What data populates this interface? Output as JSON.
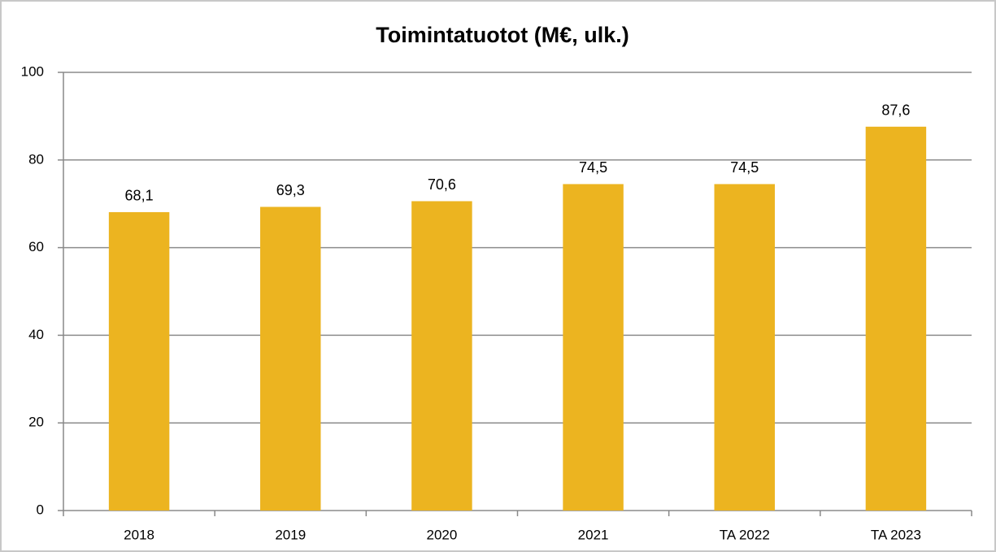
{
  "chart_data": {
    "type": "bar",
    "title": "Toimintatuotot  (M€, ulk.)",
    "categories": [
      "2018",
      "2019",
      "2020",
      "2021",
      "TA 2022",
      "TA 2023"
    ],
    "values": [
      68.1,
      69.3,
      70.6,
      74.5,
      74.5,
      87.6
    ],
    "value_labels": [
      "68,1",
      "69,3",
      "70,6",
      "74,5",
      "74,5",
      "87,6"
    ],
    "color": "#ecb420",
    "ylim": [
      0,
      100
    ],
    "yticks": [
      0,
      20,
      40,
      60,
      80,
      100
    ],
    "grid": true
  }
}
